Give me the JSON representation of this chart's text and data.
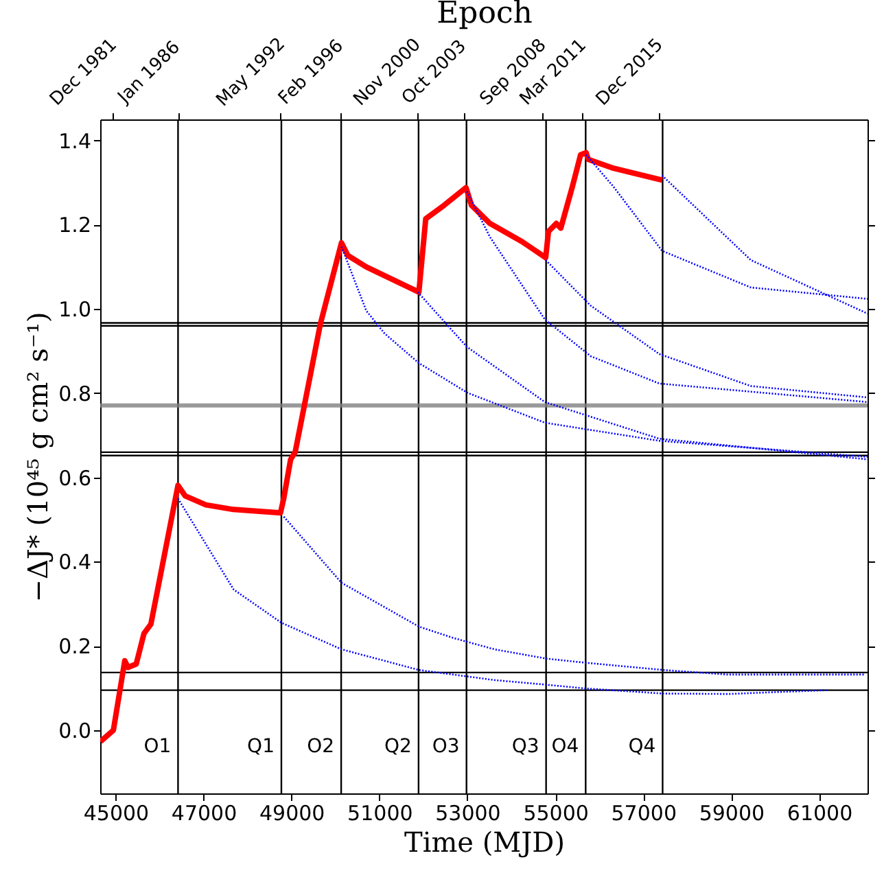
{
  "chart_data": {
    "type": "line",
    "x2label": "Epoch",
    "xlabel": "Time (MJD)",
    "ylabel": "−ΔJ* (10⁴⁵ g cm² s⁻¹)",
    "xlim": [
      44650,
      62100
    ],
    "xticks": [
      {
        "value": 45000,
        "label": "45000"
      },
      {
        "value": 47000,
        "label": "47000"
      },
      {
        "value": 49000,
        "label": "49000"
      },
      {
        "value": 51000,
        "label": "51000"
      },
      {
        "value": 53000,
        "label": "53000"
      },
      {
        "value": 55000,
        "label": "55000"
      },
      {
        "value": 57000,
        "label": "57000"
      },
      {
        "value": 59000,
        "label": "59000"
      },
      {
        "value": 61000,
        "label": "61000"
      }
    ],
    "x2lim": [
      "1981-02-17",
      "2028-11-25"
    ],
    "x2ticks": [
      {
        "value": "1981-12",
        "label": "Dec 1981"
      },
      {
        "value": "1986-01",
        "label": "Jan 1986"
      },
      {
        "value": "1992-05",
        "label": "May 1992"
      },
      {
        "value": "1996-02",
        "label": "Feb 1996"
      },
      {
        "value": "2000-11",
        "label": "Nov 2000"
      },
      {
        "value": "2003-10",
        "label": "Oct 2003"
      },
      {
        "value": "2008-09",
        "label": "Sep 2008"
      },
      {
        "value": "2011-03",
        "label": "Mar 2011"
      },
      {
        "value": "2015-12",
        "label": "Dec 2015"
      }
    ],
    "ylim": [
      -0.15,
      1.45
    ],
    "yticks": [
      {
        "value": 0,
        "label": "0.0"
      },
      0.2,
      0.4,
      0.6,
      0.8,
      {
        "value": 1,
        "label": "1.0"
      },
      1.2,
      1.4
    ],
    "grid": false,
    "series": [
      {
        "color": "#ff0000",
        "line_style": "solid",
        "x": [
          44656,
          44950,
          45209,
          45281,
          45469,
          45647,
          45803,
          46419,
          46584,
          47053,
          47678,
          48750,
          48825,
          48981,
          49084,
          49656,
          50137,
          50281,
          50700,
          51897,
          52053,
          52469,
          52969,
          53094,
          53513,
          54241,
          54781,
          54844,
          55022,
          55125,
          55387,
          55575,
          55700,
          55750,
          56325,
          57428
        ],
        "values": [
          -0.027,
          0.0,
          0.165,
          0.149,
          0.157,
          0.23,
          0.252,
          0.581,
          0.556,
          0.535,
          0.524,
          0.516,
          0.551,
          0.643,
          0.66,
          0.964,
          1.157,
          1.127,
          1.1,
          1.04,
          1.214,
          1.246,
          1.288,
          1.246,
          1.203,
          1.16,
          1.122,
          1.184,
          1.203,
          1.192,
          1.29,
          1.366,
          1.371,
          1.355,
          1.334,
          1.306
        ]
      },
      {
        "color": "#0000ff",
        "line_style": "dotted",
        "x": [
          46419,
          47684,
          48772,
          50137,
          51897,
          53616,
          54794,
          55700,
          57450,
          58928,
          61169
        ],
        "values": [
          0.55,
          0.334,
          0.255,
          0.192,
          0.143,
          0.119,
          0.108,
          0.099,
          0.087,
          0.086,
          0.095
        ]
      },
      {
        "color": "#0000ff",
        "line_style": "dotted",
        "x": [
          48825,
          50137,
          51897,
          52678,
          53616,
          54794,
          55700,
          57450,
          58928,
          62053
        ],
        "values": [
          0.507,
          0.35,
          0.246,
          0.219,
          0.192,
          0.17,
          0.16,
          0.143,
          0.132,
          0.132
        ]
      },
      {
        "color": "#0000ff",
        "line_style": "dotted",
        "x": [
          50137,
          50700,
          51116,
          51891,
          53003,
          54763,
          57365,
          62100
        ],
        "values": [
          1.148,
          0.996,
          0.942,
          0.872,
          0.801,
          0.73,
          0.687,
          0.649
        ]
      },
      {
        "color": "#0000ff",
        "line_style": "dotted",
        "x": [
          51872,
          52990,
          54763,
          57365,
          62100
        ],
        "values": [
          1.04,
          0.91,
          0.779,
          0.692,
          0.643
        ]
      },
      {
        "color": "#0000ff",
        "line_style": "dotted",
        "x": [
          52990,
          53513,
          54763,
          55803,
          57365,
          62100
        ],
        "values": [
          1.279,
          1.171,
          0.975,
          0.888,
          0.823,
          0.779
        ]
      },
      {
        "color": "#0000ff",
        "line_style": "dotted",
        "x": [
          54781,
          55803,
          57365,
          59447,
          62100
        ],
        "values": [
          1.116,
          1.008,
          0.893,
          0.817,
          0.79
        ]
      },
      {
        "color": "#0000ff",
        "line_style": "dotted",
        "x": [
          55700,
          56325,
          57428,
          59447,
          62100
        ],
        "values": [
          1.366,
          1.29,
          1.138,
          1.051,
          1.024
        ]
      },
      {
        "color": "#0000ff",
        "line_style": "dotted",
        "x": [
          57428,
          59447,
          62100
        ],
        "values": [
          1.317,
          1.116,
          0.989
        ]
      }
    ],
    "ref_lines": [
      {
        "axis": "x",
        "value": 46420,
        "color": "#000000"
      },
      {
        "axis": "x",
        "value": 48770,
        "color": "#000000"
      },
      {
        "axis": "x",
        "value": 50130,
        "color": "#000000"
      },
      {
        "axis": "x",
        "value": 51890,
        "color": "#000000"
      },
      {
        "axis": "x",
        "value": 52980,
        "color": "#000000"
      },
      {
        "axis": "x",
        "value": 54790,
        "color": "#000000"
      },
      {
        "axis": "x",
        "value": 55690,
        "color": "#000000"
      },
      {
        "axis": "x",
        "value": 57440,
        "color": "#000000"
      },
      {
        "axis": "y",
        "value": 0.095,
        "color": "#000000"
      },
      {
        "axis": "y",
        "value": 0.137,
        "color": "#000000"
      },
      {
        "axis": "y",
        "value": 0.652,
        "color": "#000000"
      },
      {
        "axis": "y",
        "value": 0.66,
        "color": "#000000"
      },
      {
        "axis": "y",
        "value": 0.771,
        "color": "#808080"
      },
      {
        "axis": "y",
        "value": 0.96,
        "color": "#000000"
      },
      {
        "axis": "y",
        "value": 0.967,
        "color": "#000000"
      }
    ],
    "annotations": [
      "O1",
      "Q1",
      "O2",
      "Q2",
      "O3",
      "Q3",
      "O4",
      "Q4"
    ]
  }
}
